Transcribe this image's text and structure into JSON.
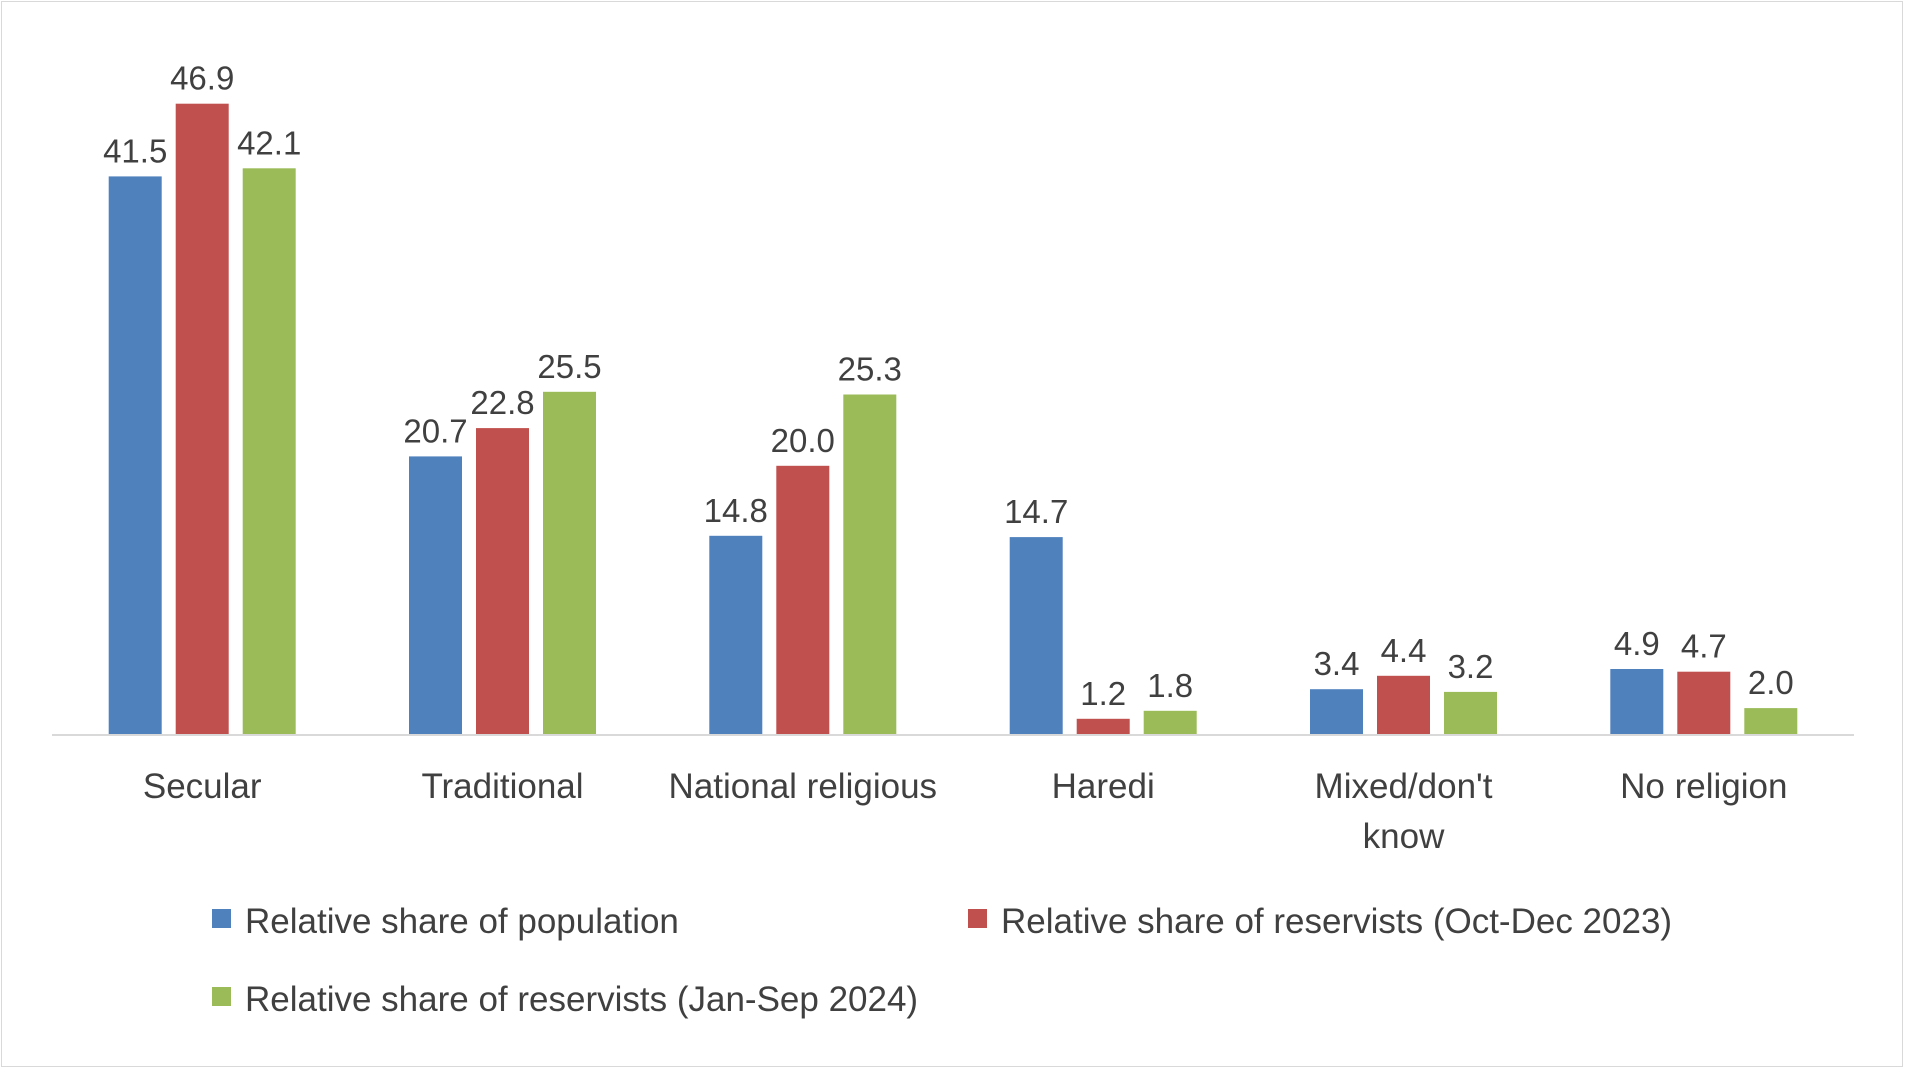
{
  "chart_data": {
    "type": "bar",
    "title": "",
    "xlabel": "",
    "ylabel": "",
    "ylim": [
      0,
      50
    ],
    "grid": false,
    "legend_position": "bottom",
    "categories": [
      [
        "Secular"
      ],
      [
        "Traditional"
      ],
      [
        "National religious"
      ],
      [
        "Haredi"
      ],
      [
        "Mixed/don't",
        "know"
      ],
      [
        "No religion"
      ]
    ],
    "series": [
      {
        "name": "Relative share of population",
        "color": "#4f81bd",
        "values": [
          41.5,
          20.7,
          14.8,
          14.7,
          3.4,
          4.9
        ],
        "labels": [
          "41.5",
          "20.7",
          "14.8",
          "14.7",
          "3.4",
          "4.9"
        ]
      },
      {
        "name": "Relative share of reservists (Oct-Dec 2023)",
        "color": "#c0504d",
        "values": [
          46.9,
          22.8,
          20.0,
          1.2,
          4.4,
          4.7
        ],
        "labels": [
          "46.9",
          "22.8",
          "20.0",
          "1.2",
          "4.4",
          "4.7"
        ]
      },
      {
        "name": "Relative share of reservists (Jan-Sep 2024)",
        "color": "#9bbb59",
        "values": [
          42.1,
          25.5,
          25.3,
          1.8,
          3.2,
          2.0
        ],
        "labels": [
          "42.1",
          "25.5",
          "25.3",
          "1.8",
          "3.2",
          "2.0"
        ]
      }
    ]
  }
}
